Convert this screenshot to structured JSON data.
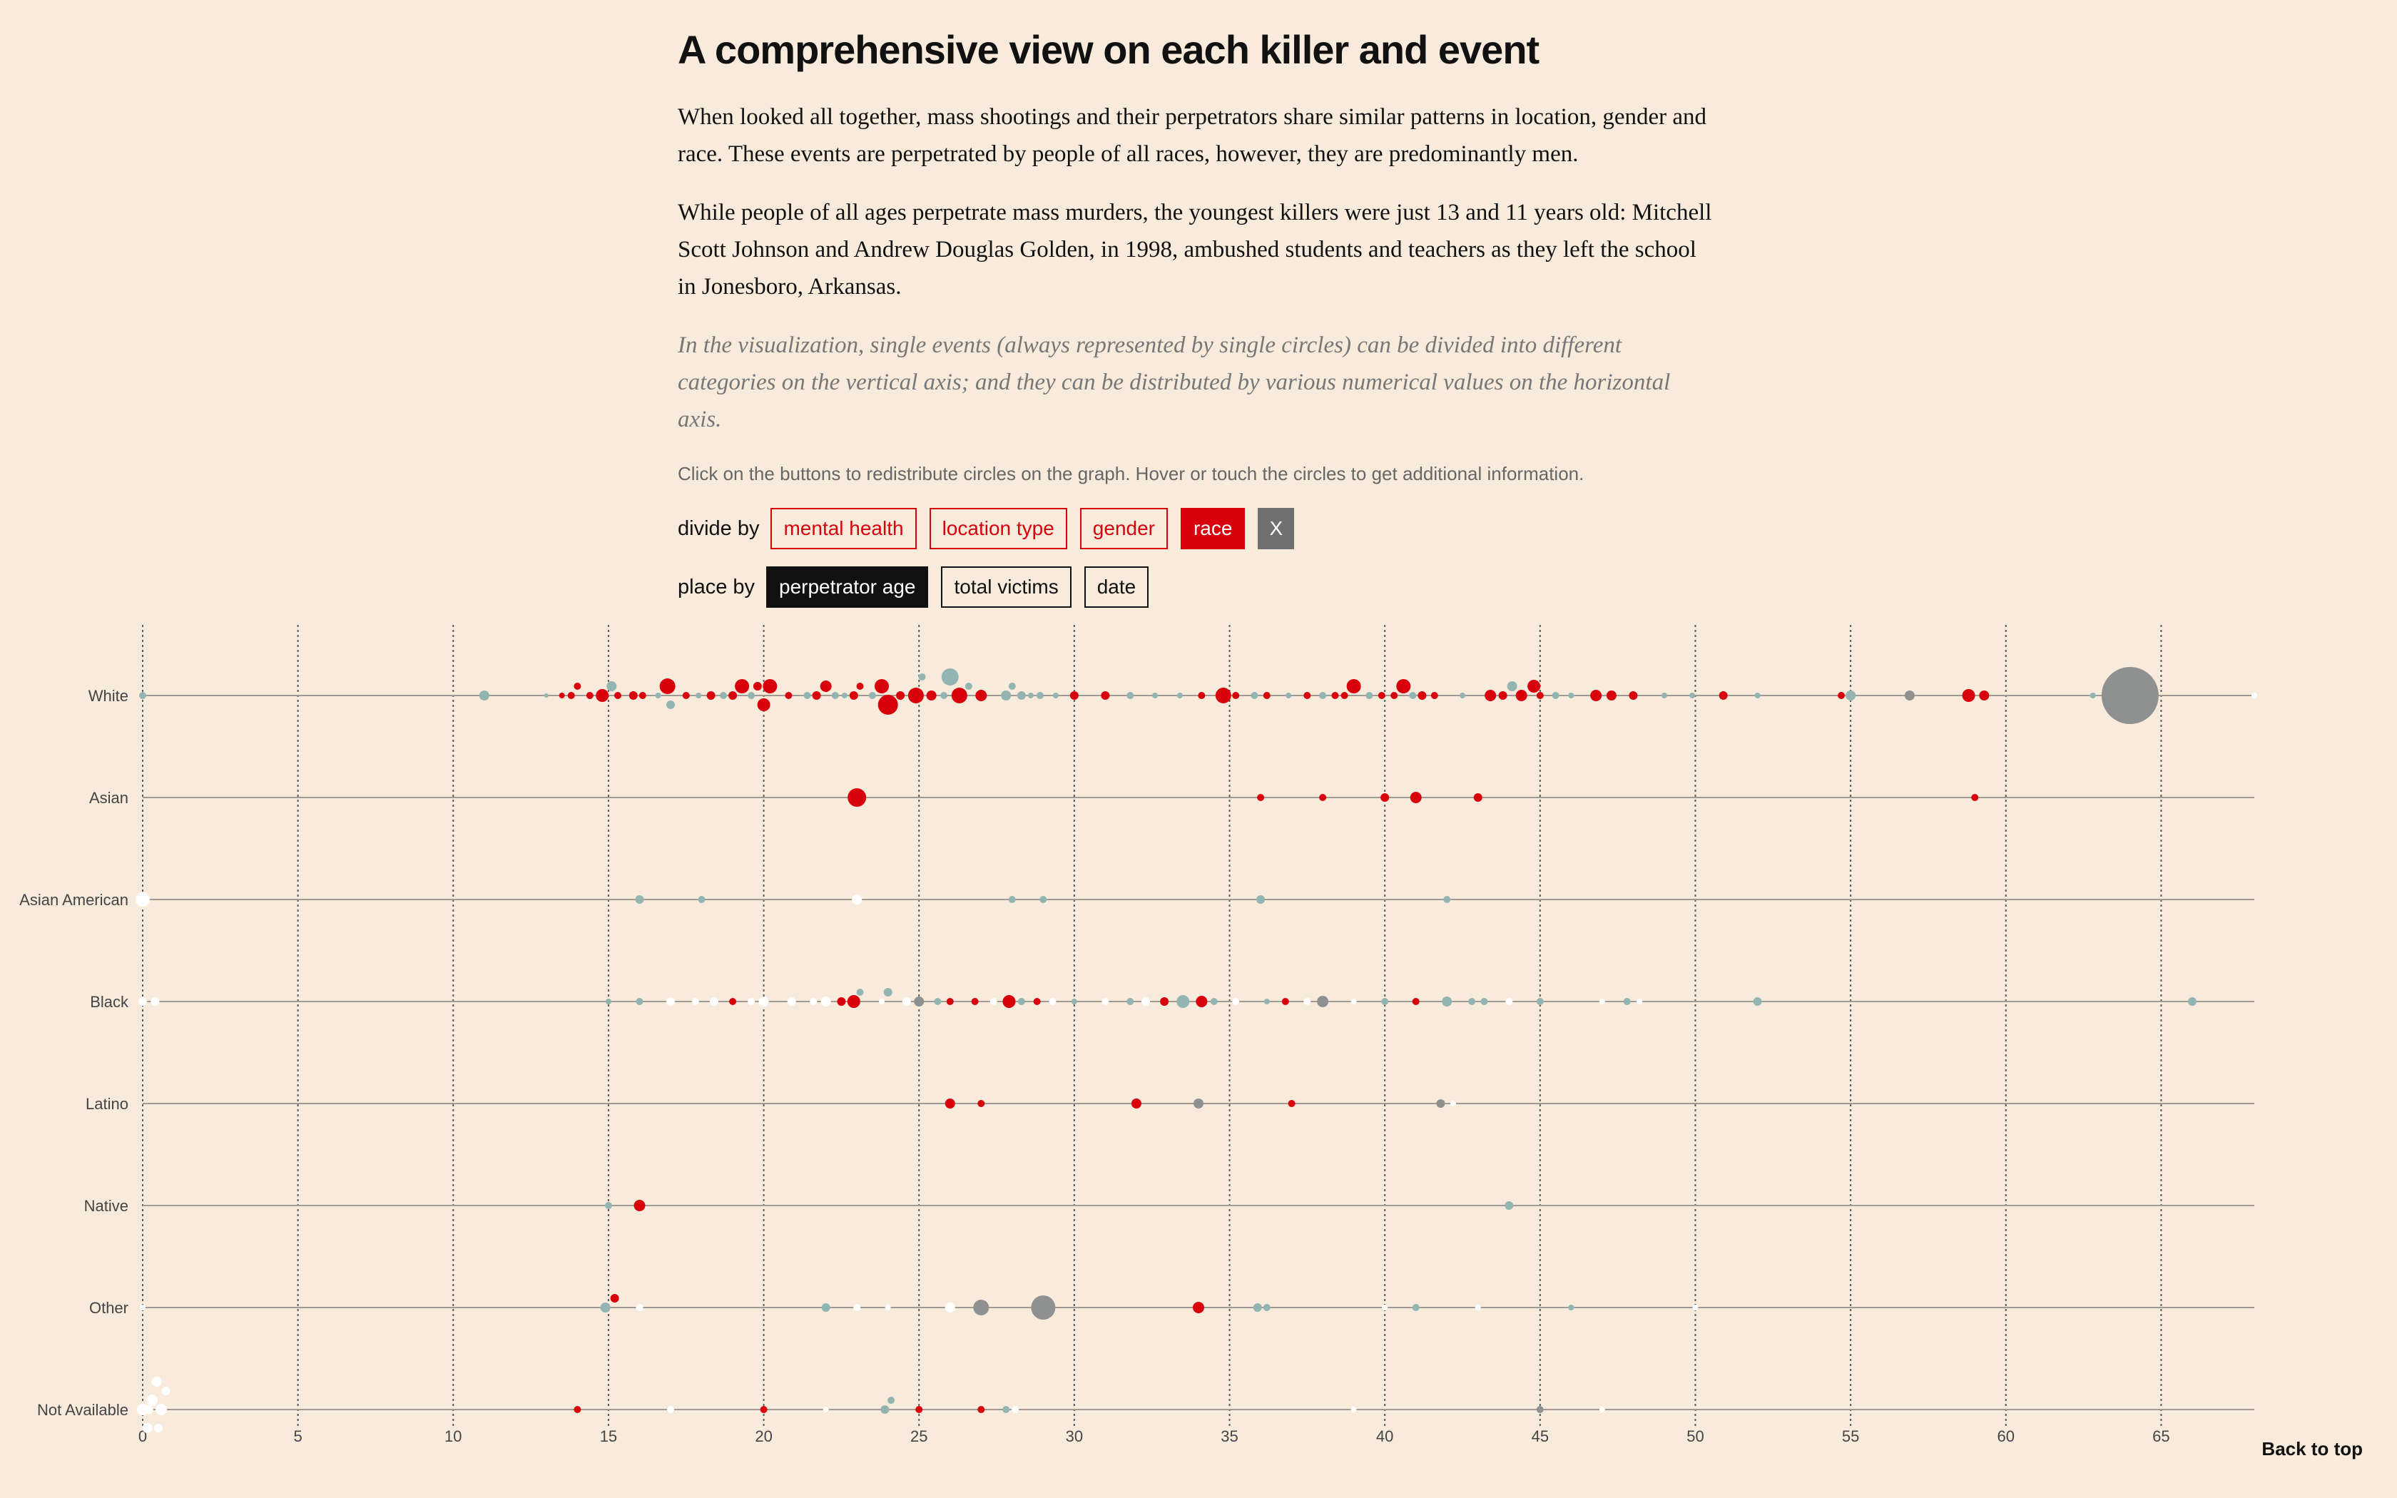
{
  "heading": "A comprehensive view on each killer and event",
  "paragraphs": [
    "When looked all together, mass shootings and their perpetrators share similar patterns in location, gender and race. These events are perpetrated by people of all races, however, they are predominantly men.",
    "While people of all ages perpetrate mass murders, the youngest killers were just 13 and 11 years old: Mitchell Scott Johnson and Andrew Douglas Golden, in 1998, ambushed students and teachers as they left the school in Jonesboro, Arkansas."
  ],
  "note": "In the visualization, single events (always represented by single circles) can be divided into different categories on the vertical axis; and they can be distributed by various numerical values on the horizontal axis.",
  "instruction": "Click on the buttons to redistribute circles on the graph. Hover or touch the circles to get additional information.",
  "divide_by": {
    "label": "divide by",
    "buttons": [
      "mental health",
      "location type",
      "gender",
      "race",
      "X"
    ],
    "active": "race"
  },
  "place_by": {
    "label": "place by",
    "buttons": [
      "perpetrator age",
      "total victims",
      "date"
    ],
    "active": "perpetrator age"
  },
  "back_to_top": "Back to top",
  "colors": {
    "background": "#f8ebdb",
    "red": "#d8000b",
    "teal": "#93b5b2",
    "gray": "#8f9090",
    "white": "#ffffff"
  },
  "chart_data": {
    "type": "scatter",
    "xlabel": "",
    "ylabel": "",
    "xlim": [
      0,
      68
    ],
    "xticks": [
      0,
      5,
      10,
      15,
      20,
      25,
      30,
      35,
      40,
      45,
      50,
      55,
      60,
      65
    ],
    "grid": "vertical dotted lines at each x tick",
    "categories": [
      "White",
      "Asian",
      "Asian American",
      "Black",
      "Latino",
      "Native",
      "Other",
      "Not Available"
    ],
    "points": [
      [
        "White",
        0,
        5,
        "t"
      ],
      [
        "White",
        11,
        7,
        "t"
      ],
      [
        "White",
        13,
        3,
        "t"
      ],
      [
        "White",
        13.5,
        4,
        "r"
      ],
      [
        "White",
        13.8,
        5,
        "r"
      ],
      [
        "White",
        14,
        5,
        "r"
      ],
      [
        "White",
        14.4,
        5,
        "r"
      ],
      [
        "White",
        14.8,
        9,
        "r"
      ],
      [
        "White",
        15.1,
        7,
        "t"
      ],
      [
        "White",
        15.3,
        5,
        "r"
      ],
      [
        "White",
        15.8,
        6,
        "r"
      ],
      [
        "White",
        16.1,
        5,
        "r"
      ],
      [
        "White",
        16.6,
        4,
        "t"
      ],
      [
        "White",
        16.9,
        11,
        "r"
      ],
      [
        "White",
        17,
        6,
        "t"
      ],
      [
        "White",
        17.5,
        5,
        "r"
      ],
      [
        "White",
        17.9,
        4,
        "t"
      ],
      [
        "White",
        18.3,
        6,
        "r"
      ],
      [
        "White",
        18.7,
        5,
        "t"
      ],
      [
        "White",
        19,
        6,
        "r"
      ],
      [
        "White",
        19.3,
        10,
        "r"
      ],
      [
        "White",
        19.6,
        5,
        "t"
      ],
      [
        "White",
        19.8,
        6,
        "r"
      ],
      [
        "White",
        20,
        9,
        "r"
      ],
      [
        "White",
        20.2,
        10,
        "r"
      ],
      [
        "White",
        20.8,
        5,
        "r"
      ],
      [
        "White",
        21.4,
        5,
        "t"
      ],
      [
        "White",
        21.7,
        6,
        "r"
      ],
      [
        "White",
        22,
        8,
        "r"
      ],
      [
        "White",
        22.3,
        5,
        "t"
      ],
      [
        "White",
        22.6,
        4,
        "t"
      ],
      [
        "White",
        22.9,
        6,
        "r"
      ],
      [
        "White",
        23.1,
        5,
        "r"
      ],
      [
        "White",
        23.5,
        5,
        "t"
      ],
      [
        "White",
        23.8,
        10,
        "r"
      ],
      [
        "White",
        24,
        14,
        "r"
      ],
      [
        "White",
        24.4,
        6,
        "r"
      ],
      [
        "White",
        24.9,
        11,
        "r"
      ],
      [
        "White",
        25.1,
        5,
        "t"
      ],
      [
        "White",
        25.4,
        7,
        "r"
      ],
      [
        "White",
        25.8,
        5,
        "t"
      ],
      [
        "White",
        26,
        12,
        "t"
      ],
      [
        "White",
        26.3,
        11,
        "r"
      ],
      [
        "White",
        26.6,
        5,
        "t"
      ],
      [
        "White",
        27,
        8,
        "r"
      ],
      [
        "White",
        27.8,
        7,
        "t"
      ],
      [
        "White",
        28,
        5,
        "t"
      ],
      [
        "White",
        28.3,
        6,
        "t"
      ],
      [
        "White",
        28.6,
        4,
        "t"
      ],
      [
        "White",
        28.9,
        5,
        "t"
      ],
      [
        "White",
        29.4,
        4,
        "t"
      ],
      [
        "White",
        30,
        6,
        "r"
      ],
      [
        "White",
        31,
        6,
        "r"
      ],
      [
        "White",
        31.8,
        5,
        "t"
      ],
      [
        "White",
        32.6,
        4,
        "t"
      ],
      [
        "White",
        33.4,
        4,
        "t"
      ],
      [
        "White",
        34.1,
        5,
        "r"
      ],
      [
        "White",
        34.8,
        11,
        "r"
      ],
      [
        "White",
        35.2,
        5,
        "r"
      ],
      [
        "White",
        35.8,
        5,
        "t"
      ],
      [
        "White",
        36.2,
        5,
        "r"
      ],
      [
        "White",
        36.9,
        4,
        "t"
      ],
      [
        "White",
        37.5,
        5,
        "r"
      ],
      [
        "White",
        38,
        5,
        "t"
      ],
      [
        "White",
        38.4,
        5,
        "r"
      ],
      [
        "White",
        38.7,
        5,
        "r"
      ],
      [
        "White",
        39,
        10,
        "r"
      ],
      [
        "White",
        39.5,
        5,
        "t"
      ],
      [
        "White",
        39.9,
        5,
        "r"
      ],
      [
        "White",
        40.3,
        5,
        "r"
      ],
      [
        "White",
        40.6,
        10,
        "r"
      ],
      [
        "White",
        40.9,
        5,
        "t"
      ],
      [
        "White",
        41.2,
        6,
        "r"
      ],
      [
        "White",
        41.6,
        5,
        "r"
      ],
      [
        "White",
        42.5,
        4,
        "t"
      ],
      [
        "White",
        43.4,
        8,
        "r"
      ],
      [
        "White",
        43.8,
        6,
        "r"
      ],
      [
        "White",
        44.1,
        7,
        "t"
      ],
      [
        "White",
        44.4,
        8,
        "r"
      ],
      [
        "White",
        44.8,
        9,
        "r"
      ],
      [
        "White",
        45,
        5,
        "r"
      ],
      [
        "White",
        45.5,
        5,
        "t"
      ],
      [
        "White",
        46,
        4,
        "t"
      ],
      [
        "White",
        46.8,
        8,
        "r"
      ],
      [
        "White",
        47.3,
        7,
        "r"
      ],
      [
        "White",
        48,
        6,
        "r"
      ],
      [
        "White",
        49,
        4,
        "t"
      ],
      [
        "White",
        49.9,
        4,
        "t"
      ],
      [
        "White",
        50.9,
        6,
        "r"
      ],
      [
        "White",
        52,
        4,
        "t"
      ],
      [
        "White",
        54.7,
        5,
        "r"
      ],
      [
        "White",
        55,
        7,
        "t"
      ],
      [
        "White",
        56.9,
        7,
        "g"
      ],
      [
        "White",
        58.8,
        9,
        "r"
      ],
      [
        "White",
        59.3,
        7,
        "r"
      ],
      [
        "White",
        62.8,
        4,
        "t"
      ],
      [
        "White",
        64,
        40,
        "g"
      ],
      [
        "White",
        68,
        4,
        "w"
      ],
      [
        "Asian",
        23,
        13,
        "r"
      ],
      [
        "Asian",
        36,
        5,
        "r"
      ],
      [
        "Asian",
        38,
        5,
        "r"
      ],
      [
        "Asian",
        40,
        6,
        "r"
      ],
      [
        "Asian",
        41,
        8,
        "r"
      ],
      [
        "Asian",
        43,
        6,
        "r"
      ],
      [
        "Asian",
        59,
        5,
        "r"
      ],
      [
        "Asian American",
        0,
        10,
        "w"
      ],
      [
        "Asian American",
        16,
        6,
        "t"
      ],
      [
        "Asian American",
        18,
        5,
        "t"
      ],
      [
        "Asian American",
        23,
        7,
        "w"
      ],
      [
        "Asian American",
        28,
        5,
        "t"
      ],
      [
        "Asian American",
        29,
        5,
        "t"
      ],
      [
        "Asian American",
        36,
        6,
        "t"
      ],
      [
        "Asian American",
        42,
        5,
        "t"
      ],
      [
        "Black",
        0,
        6,
        "w"
      ],
      [
        "Black",
        0.4,
        6,
        "w"
      ],
      [
        "Black",
        15,
        4,
        "t"
      ],
      [
        "Black",
        16,
        5,
        "t"
      ],
      [
        "Black",
        17,
        6,
        "w"
      ],
      [
        "Black",
        17.8,
        5,
        "w"
      ],
      [
        "Black",
        18.4,
        6,
        "w"
      ],
      [
        "Black",
        19,
        5,
        "r"
      ],
      [
        "Black",
        19.6,
        5,
        "w"
      ],
      [
        "Black",
        20,
        7,
        "w"
      ],
      [
        "Black",
        20.9,
        6,
        "w"
      ],
      [
        "Black",
        21.6,
        5,
        "w"
      ],
      [
        "Black",
        22,
        7,
        "w"
      ],
      [
        "Black",
        22.5,
        6,
        "r"
      ],
      [
        "Black",
        22.9,
        9,
        "r"
      ],
      [
        "Black",
        23.1,
        5,
        "t"
      ],
      [
        "Black",
        23.8,
        4,
        "w"
      ],
      [
        "Black",
        24,
        6,
        "t"
      ],
      [
        "Black",
        24.6,
        6,
        "w"
      ],
      [
        "Black",
        25,
        7,
        "g"
      ],
      [
        "Black",
        25.6,
        5,
        "t"
      ],
      [
        "Black",
        26,
        5,
        "r"
      ],
      [
        "Black",
        26.8,
        5,
        "r"
      ],
      [
        "Black",
        27.4,
        5,
        "w"
      ],
      [
        "Black",
        27.9,
        9,
        "r"
      ],
      [
        "Black",
        28.3,
        5,
        "t"
      ],
      [
        "Black",
        28.8,
        5,
        "r"
      ],
      [
        "Black",
        29.3,
        5,
        "w"
      ],
      [
        "Black",
        30,
        4,
        "t"
      ],
      [
        "Black",
        31,
        5,
        "w"
      ],
      [
        "Black",
        31.8,
        5,
        "t"
      ],
      [
        "Black",
        32.3,
        6,
        "w"
      ],
      [
        "Black",
        32.9,
        6,
        "r"
      ],
      [
        "Black",
        33.5,
        9,
        "t"
      ],
      [
        "Black",
        34.1,
        8,
        "r"
      ],
      [
        "Black",
        34.5,
        5,
        "t"
      ],
      [
        "Black",
        35.2,
        5,
        "w"
      ],
      [
        "Black",
        36.2,
        4,
        "t"
      ],
      [
        "Black",
        36.8,
        5,
        "r"
      ],
      [
        "Black",
        37.5,
        5,
        "w"
      ],
      [
        "Black",
        38,
        8,
        "g"
      ],
      [
        "Black",
        39,
        4,
        "w"
      ],
      [
        "Black",
        40,
        5,
        "t"
      ],
      [
        "Black",
        41,
        5,
        "r"
      ],
      [
        "Black",
        42,
        7,
        "t"
      ],
      [
        "Black",
        42.8,
        5,
        "t"
      ],
      [
        "Black",
        43.2,
        5,
        "t"
      ],
      [
        "Black",
        44,
        5,
        "w"
      ],
      [
        "Black",
        45,
        5,
        "t"
      ],
      [
        "Black",
        47,
        4,
        "w"
      ],
      [
        "Black",
        47.8,
        5,
        "t"
      ],
      [
        "Black",
        48.2,
        4,
        "w"
      ],
      [
        "Black",
        52,
        6,
        "t"
      ],
      [
        "Black",
        66,
        6,
        "t"
      ],
      [
        "Latino",
        26,
        7,
        "r"
      ],
      [
        "Latino",
        27,
        5,
        "r"
      ],
      [
        "Latino",
        32,
        7,
        "r"
      ],
      [
        "Latino",
        34,
        7,
        "g"
      ],
      [
        "Latino",
        37,
        5,
        "r"
      ],
      [
        "Latino",
        41.8,
        6,
        "g"
      ],
      [
        "Latino",
        42.2,
        4,
        "w"
      ],
      [
        "Native",
        15,
        5,
        "t"
      ],
      [
        "Native",
        16,
        8,
        "r"
      ],
      [
        "Native",
        44,
        6,
        "t"
      ],
      [
        "Other",
        0,
        4,
        "w"
      ],
      [
        "Other",
        14.9,
        7,
        "t"
      ],
      [
        "Other",
        15.2,
        6,
        "r"
      ],
      [
        "Other",
        16,
        5,
        "w"
      ],
      [
        "Other",
        22,
        6,
        "t"
      ],
      [
        "Other",
        23,
        5,
        "w"
      ],
      [
        "Other",
        24,
        4,
        "w"
      ],
      [
        "Other",
        26,
        7,
        "w"
      ],
      [
        "Other",
        27,
        11,
        "g"
      ],
      [
        "Other",
        29,
        17,
        "g"
      ],
      [
        "Other",
        34,
        8,
        "r"
      ],
      [
        "Other",
        35.9,
        6,
        "t"
      ],
      [
        "Other",
        36.2,
        5,
        "t"
      ],
      [
        "Other",
        40,
        4,
        "w"
      ],
      [
        "Other",
        41,
        5,
        "t"
      ],
      [
        "Other",
        43,
        4,
        "w"
      ],
      [
        "Other",
        46,
        4,
        "t"
      ],
      [
        "Other",
        50,
        4,
        "w"
      ],
      [
        "Not Available",
        0,
        8,
        "w"
      ],
      [
        "Not Available",
        0.3,
        8,
        "w"
      ],
      [
        "Not Available",
        0.6,
        8,
        "w"
      ],
      [
        "Not Available",
        0.15,
        7,
        "w"
      ],
      [
        "Not Available",
        0.45,
        7,
        "w"
      ],
      [
        "Not Available",
        0.75,
        6,
        "w"
      ],
      [
        "Not Available",
        0.2,
        6,
        "w"
      ],
      [
        "Not Available",
        0.5,
        6,
        "w"
      ],
      [
        "Not Available",
        14,
        5,
        "r"
      ],
      [
        "Not Available",
        17,
        5,
        "w"
      ],
      [
        "Not Available",
        20,
        5,
        "r"
      ],
      [
        "Not Available",
        22,
        4,
        "w"
      ],
      [
        "Not Available",
        23.9,
        6,
        "t"
      ],
      [
        "Not Available",
        24.1,
        5,
        "t"
      ],
      [
        "Not Available",
        25,
        5,
        "r"
      ],
      [
        "Not Available",
        27,
        5,
        "r"
      ],
      [
        "Not Available",
        27.8,
        5,
        "t"
      ],
      [
        "Not Available",
        28.1,
        5,
        "w"
      ],
      [
        "Not Available",
        39,
        4,
        "w"
      ],
      [
        "Not Available",
        45,
        5,
        "g"
      ],
      [
        "Not Available",
        47,
        4,
        "w"
      ]
    ],
    "point_format": "[category, perpetrator age, circle radius, color code r=red t=teal g=gray w=white]"
  }
}
